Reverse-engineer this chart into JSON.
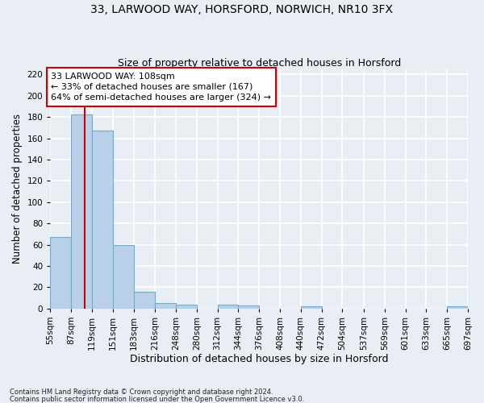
{
  "title1": "33, LARWOOD WAY, HORSFORD, NORWICH, NR10 3FX",
  "title2": "Size of property relative to detached houses in Horsford",
  "xlabel": "Distribution of detached houses by size in Horsford",
  "ylabel": "Number of detached properties",
  "footnote1": "Contains HM Land Registry data © Crown copyright and database right 2024.",
  "footnote2": "Contains public sector information licensed under the Open Government Licence v3.0.",
  "bar_edges": [
    55,
    87,
    119,
    151,
    183,
    216,
    248,
    280,
    312,
    344,
    376,
    408,
    440,
    472,
    504,
    537,
    569,
    601,
    633,
    665,
    697
  ],
  "bar_values": [
    67,
    182,
    167,
    60,
    16,
    5,
    4,
    0,
    4,
    3,
    0,
    0,
    2,
    0,
    0,
    0,
    0,
    0,
    0,
    2
  ],
  "bar_color": "#b8d0e8",
  "bar_edge_color": "#7aaac8",
  "property_size": 108,
  "vline_color": "#cc0000",
  "annotation_text": "33 LARWOOD WAY: 108sqm\n← 33% of detached houses are smaller (167)\n64% of semi-detached houses are larger (324) →",
  "annotation_box_color": "#ffffff",
  "annotation_box_edge_color": "#cc0000",
  "ylim": [
    0,
    225
  ],
  "yticks": [
    0,
    20,
    40,
    60,
    80,
    100,
    120,
    140,
    160,
    180,
    200,
    220
  ],
  "background_color": "#e8eef4",
  "grid_color": "#ffffff",
  "title1_fontsize": 10,
  "title2_fontsize": 9,
  "xlabel_fontsize": 9,
  "ylabel_fontsize": 8.5,
  "tick_fontsize": 7.5,
  "annotation_fontsize": 8
}
